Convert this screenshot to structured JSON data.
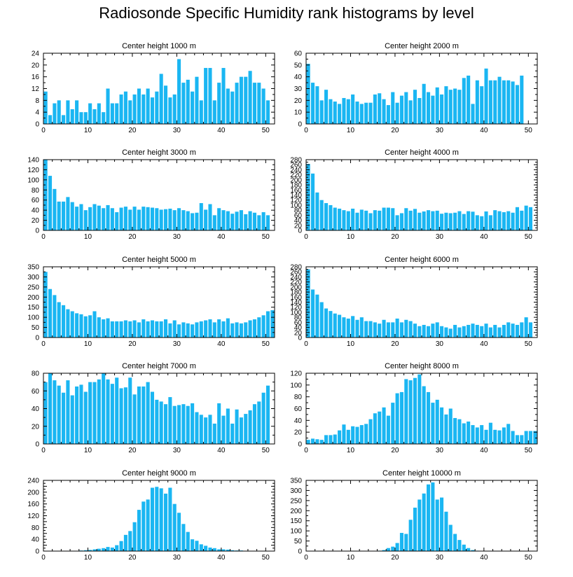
{
  "title": "Radiosonde Specific Humidity rank histograms by level",
  "colors": {
    "bar": "#1ab6f2",
    "axis": "#000000",
    "background": "#ffffff"
  },
  "chart_data": [
    {
      "type": "bar",
      "title": "Center height 1000 m",
      "xlabel": "",
      "ylabel": "",
      "xlim": [
        0,
        52
      ],
      "xticks": [
        0,
        10,
        20,
        30,
        40,
        50
      ],
      "ylim": [
        0,
        24
      ],
      "yticks": [
        0,
        4,
        8,
        12,
        16,
        20,
        24
      ],
      "x": [
        0,
        1,
        2,
        3,
        4,
        5,
        6,
        7,
        8,
        9,
        10,
        11,
        12,
        13,
        14,
        15,
        16,
        17,
        18,
        19,
        20,
        21,
        22,
        23,
        24,
        25,
        26,
        27,
        28,
        29,
        30,
        31,
        32,
        33,
        34,
        35,
        36,
        37,
        38,
        39,
        40,
        41,
        42,
        43,
        44,
        45,
        46,
        47,
        48,
        49,
        50,
        51
      ],
      "values": [
        11,
        3,
        7,
        8,
        3,
        8,
        5,
        8,
        4,
        4,
        7,
        5,
        7,
        4,
        12,
        7,
        7,
        10,
        11,
        8,
        10,
        12,
        10,
        12,
        9,
        11,
        17,
        13,
        9,
        10,
        22,
        14,
        15,
        11,
        16,
        8,
        19,
        19,
        8,
        14,
        19,
        12,
        11,
        14,
        16,
        16,
        18,
        14,
        14,
        12,
        8,
        0
      ]
    },
    {
      "type": "bar",
      "title": "Center height 2000 m",
      "xlabel": "",
      "ylabel": "",
      "xlim": [
        0,
        52
      ],
      "xticks": [
        0,
        10,
        20,
        30,
        40,
        50
      ],
      "ylim": [
        0,
        60
      ],
      "yticks": [
        0,
        10,
        20,
        30,
        40,
        50,
        60
      ],
      "x": [
        0,
        1,
        2,
        3,
        4,
        5,
        6,
        7,
        8,
        9,
        10,
        11,
        12,
        13,
        14,
        15,
        16,
        17,
        18,
        19,
        20,
        21,
        22,
        23,
        24,
        25,
        26,
        27,
        28,
        29,
        30,
        31,
        32,
        33,
        34,
        35,
        36,
        37,
        38,
        39,
        40,
        41,
        42,
        43,
        44,
        45,
        46,
        47,
        48,
        49,
        50,
        51
      ],
      "values": [
        51,
        35,
        32,
        20,
        29,
        21,
        19,
        17,
        22,
        21,
        25,
        19,
        17,
        18,
        18,
        25,
        26,
        21,
        16,
        27,
        18,
        24,
        27,
        20,
        29,
        22,
        34,
        27,
        24,
        31,
        25,
        32,
        29,
        30,
        29,
        39,
        41,
        17,
        37,
        32,
        47,
        37,
        37,
        40,
        37,
        37,
        36,
        33,
        41,
        0,
        0,
        0
      ]
    },
    {
      "type": "bar",
      "title": "Center height 3000 m",
      "xlabel": "",
      "ylabel": "",
      "xlim": [
        0,
        52
      ],
      "xticks": [
        0,
        10,
        20,
        30,
        40,
        50
      ],
      "ylim": [
        0,
        140
      ],
      "yticks": [
        0,
        20,
        40,
        60,
        80,
        100,
        120,
        140
      ],
      "x": [
        0,
        1,
        2,
        3,
        4,
        5,
        6,
        7,
        8,
        9,
        10,
        11,
        12,
        13,
        14,
        15,
        16,
        17,
        18,
        19,
        20,
        21,
        22,
        23,
        24,
        25,
        26,
        27,
        28,
        29,
        30,
        31,
        32,
        33,
        34,
        35,
        36,
        37,
        38,
        39,
        40,
        41,
        42,
        43,
        44,
        45,
        46,
        47,
        48,
        49,
        50,
        51
      ],
      "values": [
        140,
        108,
        82,
        57,
        57,
        66,
        56,
        47,
        52,
        40,
        46,
        52,
        49,
        44,
        50,
        44,
        36,
        45,
        47,
        41,
        47,
        41,
        47,
        46,
        45,
        44,
        41,
        42,
        43,
        40,
        44,
        40,
        38,
        34,
        35,
        54,
        41,
        52,
        30,
        44,
        40,
        38,
        33,
        37,
        40,
        32,
        38,
        35,
        30,
        36,
        30,
        0
      ]
    },
    {
      "type": "bar",
      "title": "Center height 4000 m",
      "xlabel": "",
      "ylabel": "",
      "xlim": [
        0,
        52
      ],
      "xticks": [
        0,
        10,
        20,
        30,
        40,
        50
      ],
      "ylim": [
        0,
        280
      ],
      "yticks": [
        0,
        20,
        40,
        60,
        80,
        100,
        120,
        140,
        160,
        180,
        200,
        220,
        240,
        260,
        280
      ],
      "ylabels": [
        "0",
        "20",
        "40",
        "60",
        "80",
        "100",
        "120",
        "140",
        "160",
        "180",
        "200",
        "220",
        "240",
        "260",
        "280"
      ],
      "x": [
        0,
        1,
        2,
        3,
        4,
        5,
        6,
        7,
        8,
        9,
        10,
        11,
        12,
        13,
        14,
        15,
        16,
        17,
        18,
        19,
        20,
        21,
        22,
        23,
        24,
        25,
        26,
        27,
        28,
        29,
        30,
        31,
        32,
        33,
        34,
        35,
        36,
        37,
        38,
        39,
        40,
        41,
        42,
        43,
        44,
        45,
        46,
        47,
        48,
        49,
        50,
        51
      ],
      "values": [
        263,
        225,
        150,
        120,
        108,
        100,
        90,
        86,
        80,
        76,
        86,
        70,
        82,
        78,
        68,
        80,
        78,
        90,
        90,
        88,
        60,
        68,
        88,
        78,
        85,
        70,
        75,
        80,
        76,
        78,
        66,
        70,
        68,
        70,
        76,
        65,
        76,
        74,
        60,
        56,
        75,
        60,
        80,
        76,
        72,
        76,
        70,
        92,
        78,
        98,
        92,
        0
      ]
    },
    {
      "type": "bar",
      "title": "Center height 5000 m",
      "xlabel": "",
      "ylabel": "",
      "xlim": [
        0,
        52
      ],
      "xticks": [
        0,
        10,
        20,
        30,
        40,
        50
      ],
      "ylim": [
        0,
        350
      ],
      "yticks": [
        0,
        50,
        100,
        150,
        200,
        250,
        300,
        350
      ],
      "x": [
        0,
        1,
        2,
        3,
        4,
        5,
        6,
        7,
        8,
        9,
        10,
        11,
        12,
        13,
        14,
        15,
        16,
        17,
        18,
        19,
        20,
        21,
        22,
        23,
        24,
        25,
        26,
        27,
        28,
        29,
        30,
        31,
        32,
        33,
        34,
        35,
        36,
        37,
        38,
        39,
        40,
        41,
        42,
        43,
        44,
        45,
        46,
        47,
        48,
        49,
        50,
        51
      ],
      "values": [
        325,
        240,
        210,
        175,
        160,
        140,
        130,
        120,
        115,
        105,
        110,
        130,
        100,
        90,
        95,
        80,
        80,
        80,
        85,
        80,
        85,
        75,
        90,
        80,
        85,
        80,
        80,
        90,
        70,
        85,
        65,
        75,
        70,
        65,
        75,
        80,
        85,
        90,
        75,
        90,
        80,
        95,
        70,
        75,
        70,
        75,
        85,
        90,
        100,
        110,
        130,
        135
      ]
    },
    {
      "type": "bar",
      "title": "Center height 6000 m",
      "xlabel": "",
      "ylabel": "",
      "xlim": [
        0,
        52
      ],
      "xticks": [
        0,
        10,
        20,
        30,
        40,
        50
      ],
      "ylim": [
        0,
        280
      ],
      "yticks": [
        0,
        20,
        40,
        60,
        80,
        100,
        120,
        140,
        160,
        180,
        200,
        220,
        240,
        260,
        280
      ],
      "ylabels": [
        "0",
        "20",
        "40",
        "60",
        "80",
        "100",
        "120",
        "140",
        "160",
        "180",
        "200",
        "220",
        "240",
        "260",
        "280"
      ],
      "x": [
        0,
        1,
        2,
        3,
        4,
        5,
        6,
        7,
        8,
        9,
        10,
        11,
        12,
        13,
        14,
        15,
        16,
        17,
        18,
        19,
        20,
        21,
        22,
        23,
        24,
        25,
        26,
        27,
        28,
        29,
        30,
        31,
        32,
        33,
        34,
        35,
        36,
        37,
        38,
        39,
        40,
        41,
        42,
        43,
        44,
        45,
        46,
        47,
        48,
        49,
        50,
        51
      ],
      "values": [
        270,
        190,
        170,
        140,
        115,
        105,
        95,
        90,
        80,
        75,
        85,
        70,
        80,
        65,
        65,
        60,
        55,
        70,
        60,
        60,
        75,
        60,
        70,
        65,
        55,
        45,
        50,
        45,
        55,
        60,
        45,
        40,
        35,
        50,
        40,
        45,
        50,
        55,
        50,
        45,
        55,
        40,
        50,
        40,
        50,
        60,
        55,
        50,
        60,
        80,
        60,
        0
      ]
    },
    {
      "type": "bar",
      "title": "Center height 7000 m",
      "xlabel": "",
      "ylabel": "",
      "xlim": [
        0,
        52
      ],
      "xticks": [
        0,
        10,
        20,
        30,
        40,
        50
      ],
      "ylim": [
        0,
        80
      ],
      "yticks": [
        0,
        20,
        40,
        60,
        80
      ],
      "x": [
        0,
        1,
        2,
        3,
        4,
        5,
        6,
        7,
        8,
        9,
        10,
        11,
        12,
        13,
        14,
        15,
        16,
        17,
        18,
        19,
        20,
        21,
        22,
        23,
        24,
        25,
        26,
        27,
        28,
        29,
        30,
        31,
        32,
        33,
        34,
        35,
        36,
        37,
        38,
        39,
        40,
        41,
        42,
        43,
        44,
        45,
        46,
        47,
        48,
        49,
        50,
        51
      ],
      "values": [
        70,
        80,
        72,
        66,
        58,
        72,
        55,
        65,
        67,
        59,
        70,
        70,
        73,
        80,
        73,
        68,
        75,
        63,
        64,
        75,
        56,
        65,
        65,
        70,
        59,
        50,
        48,
        45,
        53,
        43,
        44,
        45,
        43,
        46,
        36,
        33,
        30,
        33,
        23,
        46,
        32,
        40,
        23,
        39,
        30,
        34,
        38,
        45,
        48,
        58,
        66,
        0
      ]
    },
    {
      "type": "bar",
      "title": "Center height 8000 m",
      "xlabel": "",
      "ylabel": "",
      "xlim": [
        0,
        52
      ],
      "xticks": [
        0,
        10,
        20,
        30,
        40,
        50
      ],
      "ylim": [
        0,
        120
      ],
      "yticks": [
        0,
        20,
        40,
        60,
        80,
        100,
        120
      ],
      "x": [
        0,
        1,
        2,
        3,
        4,
        5,
        6,
        7,
        8,
        9,
        10,
        11,
        12,
        13,
        14,
        15,
        16,
        17,
        18,
        19,
        20,
        21,
        22,
        23,
        24,
        25,
        26,
        27,
        28,
        29,
        30,
        31,
        32,
        33,
        34,
        35,
        36,
        37,
        38,
        39,
        40,
        41,
        42,
        43,
        44,
        45,
        46,
        47,
        48,
        49,
        50,
        51
      ],
      "values": [
        7,
        9,
        8,
        7,
        15,
        15,
        16,
        23,
        33,
        24,
        30,
        29,
        32,
        34,
        42,
        52,
        55,
        62,
        48,
        70,
        86,
        88,
        110,
        108,
        112,
        118,
        98,
        88,
        70,
        75,
        62,
        50,
        60,
        44,
        42,
        35,
        38,
        32,
        28,
        32,
        24,
        36,
        24,
        23,
        28,
        34,
        22,
        15,
        15,
        22,
        22,
        22
      ]
    },
    {
      "type": "bar",
      "title": "Center height 9000 m",
      "xlabel": "",
      "ylabel": "",
      "xlim": [
        0,
        52
      ],
      "xticks": [
        0,
        10,
        20,
        30,
        40,
        50
      ],
      "ylim": [
        0,
        240
      ],
      "yticks": [
        0,
        20,
        40,
        60,
        80,
        100,
        120,
        140,
        160,
        180,
        200,
        220,
        240
      ],
      "ylabels": [
        "0",
        "",
        "40",
        "",
        "80",
        "",
        "120",
        "",
        "160",
        "",
        "200",
        "",
        "240"
      ],
      "x": [
        0,
        1,
        2,
        3,
        4,
        5,
        6,
        7,
        8,
        9,
        10,
        11,
        12,
        13,
        14,
        15,
        16,
        17,
        18,
        19,
        20,
        21,
        22,
        23,
        24,
        25,
        26,
        27,
        28,
        29,
        30,
        31,
        32,
        33,
        34,
        35,
        36,
        37,
        38,
        39,
        40,
        41,
        42,
        43,
        44,
        45,
        46,
        47,
        48,
        49,
        50,
        51
      ],
      "values": [
        0,
        0,
        0,
        0,
        0,
        1,
        1,
        1,
        2,
        3,
        4,
        6,
        8,
        10,
        14,
        12,
        20,
        34,
        55,
        68,
        98,
        140,
        168,
        175,
        215,
        218,
        213,
        195,
        215,
        160,
        130,
        92,
        65,
        40,
        35,
        23,
        18,
        12,
        10,
        6,
        6,
        5,
        3,
        2,
        2,
        1,
        1,
        1,
        0,
        0,
        0,
        0
      ]
    },
    {
      "type": "bar",
      "title": "Center height 10000 m",
      "xlabel": "",
      "ylabel": "",
      "xlim": [
        0,
        52
      ],
      "xticks": [
        0,
        10,
        20,
        30,
        40,
        50
      ],
      "ylim": [
        0,
        350
      ],
      "yticks": [
        0,
        50,
        100,
        150,
        200,
        250,
        300,
        350
      ],
      "x": [
        0,
        1,
        2,
        3,
        4,
        5,
        6,
        7,
        8,
        9,
        10,
        11,
        12,
        13,
        14,
        15,
        16,
        17,
        18,
        19,
        20,
        21,
        22,
        23,
        24,
        25,
        26,
        27,
        28,
        29,
        30,
        31,
        32,
        33,
        34,
        35,
        36,
        37,
        38,
        39,
        40,
        41,
        42,
        43,
        44,
        45,
        46,
        47,
        48,
        49,
        50,
        51
      ],
      "values": [
        0,
        0,
        0,
        0,
        0,
        0,
        0,
        0,
        0,
        0,
        0,
        0,
        0,
        0,
        0,
        0,
        2,
        5,
        15,
        22,
        40,
        90,
        85,
        155,
        215,
        255,
        285,
        330,
        340,
        255,
        265,
        195,
        130,
        85,
        55,
        32,
        15,
        5,
        2,
        1,
        0,
        0,
        0,
        0,
        0,
        0,
        0,
        0,
        0,
        0,
        0,
        0
      ]
    }
  ]
}
